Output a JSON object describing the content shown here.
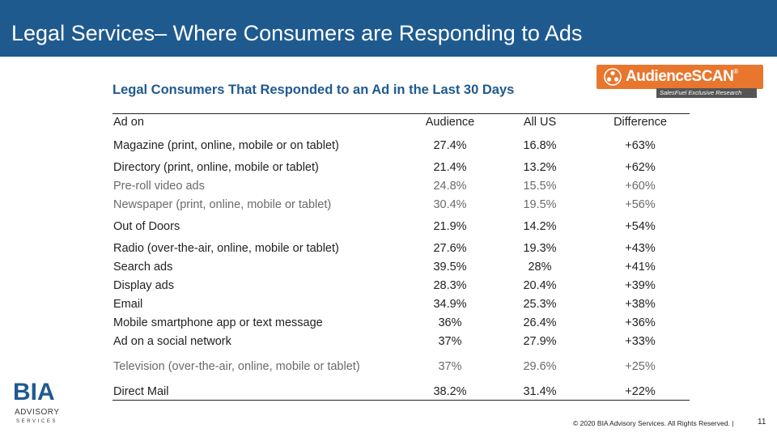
{
  "header": {
    "title": "Legal Services– Where Consumers are Responding to Ads"
  },
  "subtitle": "Legal Consumers That Responded to an Ad in the Last 30 Days",
  "brand_colors": {
    "header": "#1f5a8f",
    "accent": "#e8762d"
  },
  "logo_audiencescan": {
    "word": "AudienceSCAN",
    "registered": "®",
    "tagline": "SalesFuel Exclusive Research"
  },
  "logo_bia": {
    "mark": "BIA",
    "line1": "ADVISORY",
    "line2": "SERVICES"
  },
  "table": {
    "columns": [
      "Ad on",
      "Audience",
      "All US",
      "Difference"
    ],
    "rows": [
      {
        "label": "Magazine (print, online, mobile or on tablet)",
        "audience": "27.4%",
        "all_us": "16.8%",
        "difference": "+63%"
      },
      {
        "label": "Directory (print, online, mobile or tablet)",
        "audience": "21.4%",
        "all_us": "13.2%",
        "difference": "+62%"
      },
      {
        "label": "Pre-roll video ads",
        "audience": "24.8%",
        "all_us": "15.5%",
        "difference": "+60%"
      },
      {
        "label": "Newspaper (print, online, mobile or tablet)",
        "audience": "30.4%",
        "all_us": "19.5%",
        "difference": "+56%"
      },
      {
        "label": "Out of Doors",
        "audience": "21.9%",
        "all_us": "14.2%",
        "difference": "+54%"
      },
      {
        "label": "Radio (over-the-air, online, mobile or tablet)",
        "audience": "27.6%",
        "all_us": "19.3%",
        "difference": "+43%"
      },
      {
        "label": "Search ads",
        "audience": "39.5%",
        "all_us": "28%",
        "difference": "+41%"
      },
      {
        "label": "Display ads",
        "audience": "28.3%",
        "all_us": "20.4%",
        "difference": "+39%"
      },
      {
        "label": "Email",
        "audience": "34.9%",
        "all_us": "25.3%",
        "difference": "+38%"
      },
      {
        "label": "Mobile smartphone app or text message",
        "audience": "36%",
        "all_us": "26.4%",
        "difference": "+36%"
      },
      {
        "label": "Ad on a social network",
        "audience": "37%",
        "all_us": "27.9%",
        "difference": "+33%"
      },
      {
        "label": "Television (over-the-air, online, mobile or tablet)",
        "audience": "37%",
        "all_us": "29.6%",
        "difference": "+25%"
      },
      {
        "label": "Direct Mail",
        "audience": "38.2%",
        "all_us": "31.4%",
        "difference": "+22%"
      }
    ]
  },
  "footer": {
    "copyright": "© 2020 BIA Advisory Services. All Rights Reserved. |",
    "page": "11"
  }
}
